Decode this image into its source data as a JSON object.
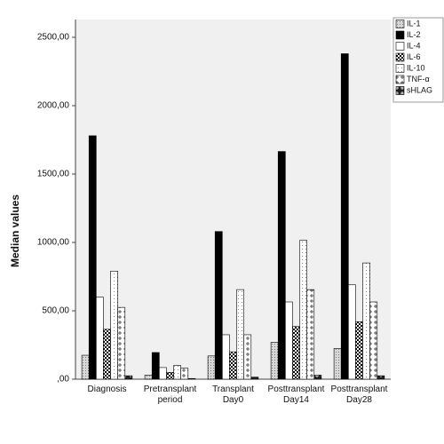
{
  "chart_data": {
    "type": "bar",
    "y_label": "Median values",
    "categories": [
      "Diagnosis",
      "Pretransplant period",
      "Transplant Day0",
      "Posttransplant Day14",
      "Posttransplant Day28"
    ],
    "series": [
      {
        "name": "IL-1",
        "pattern": "dots",
        "values": [
          175,
          30,
          170,
          270,
          225
        ]
      },
      {
        "name": "IL-2",
        "pattern": "solid",
        "values": [
          1780,
          195,
          1080,
          1665,
          2380
        ]
      },
      {
        "name": "IL-4",
        "pattern": "white",
        "values": [
          600,
          85,
          325,
          565,
          690
        ]
      },
      {
        "name": "IL-6",
        "pattern": "checker",
        "values": [
          365,
          50,
          200,
          385,
          420
        ]
      },
      {
        "name": "IL-10",
        "pattern": "sparse",
        "values": [
          790,
          100,
          655,
          1015,
          850
        ]
      },
      {
        "name": "TNF-α",
        "pattern": "plus",
        "values": [
          525,
          80,
          325,
          655,
          565
        ]
      },
      {
        "name": "sHLAG",
        "pattern": "darkplus",
        "values": [
          25,
          5,
          15,
          30,
          25
        ]
      }
    ],
    "ylim": [
      0,
      2630
    ],
    "yticks": [
      {
        "value": 0,
        "label": ",00"
      },
      {
        "value": 500,
        "label": "500,00"
      },
      {
        "value": 1000,
        "label": "1000,00"
      },
      {
        "value": 1500,
        "label": "1500,00"
      },
      {
        "value": 2000,
        "label": "2000,00"
      },
      {
        "value": 2500,
        "label": "2500,00"
      }
    ]
  }
}
